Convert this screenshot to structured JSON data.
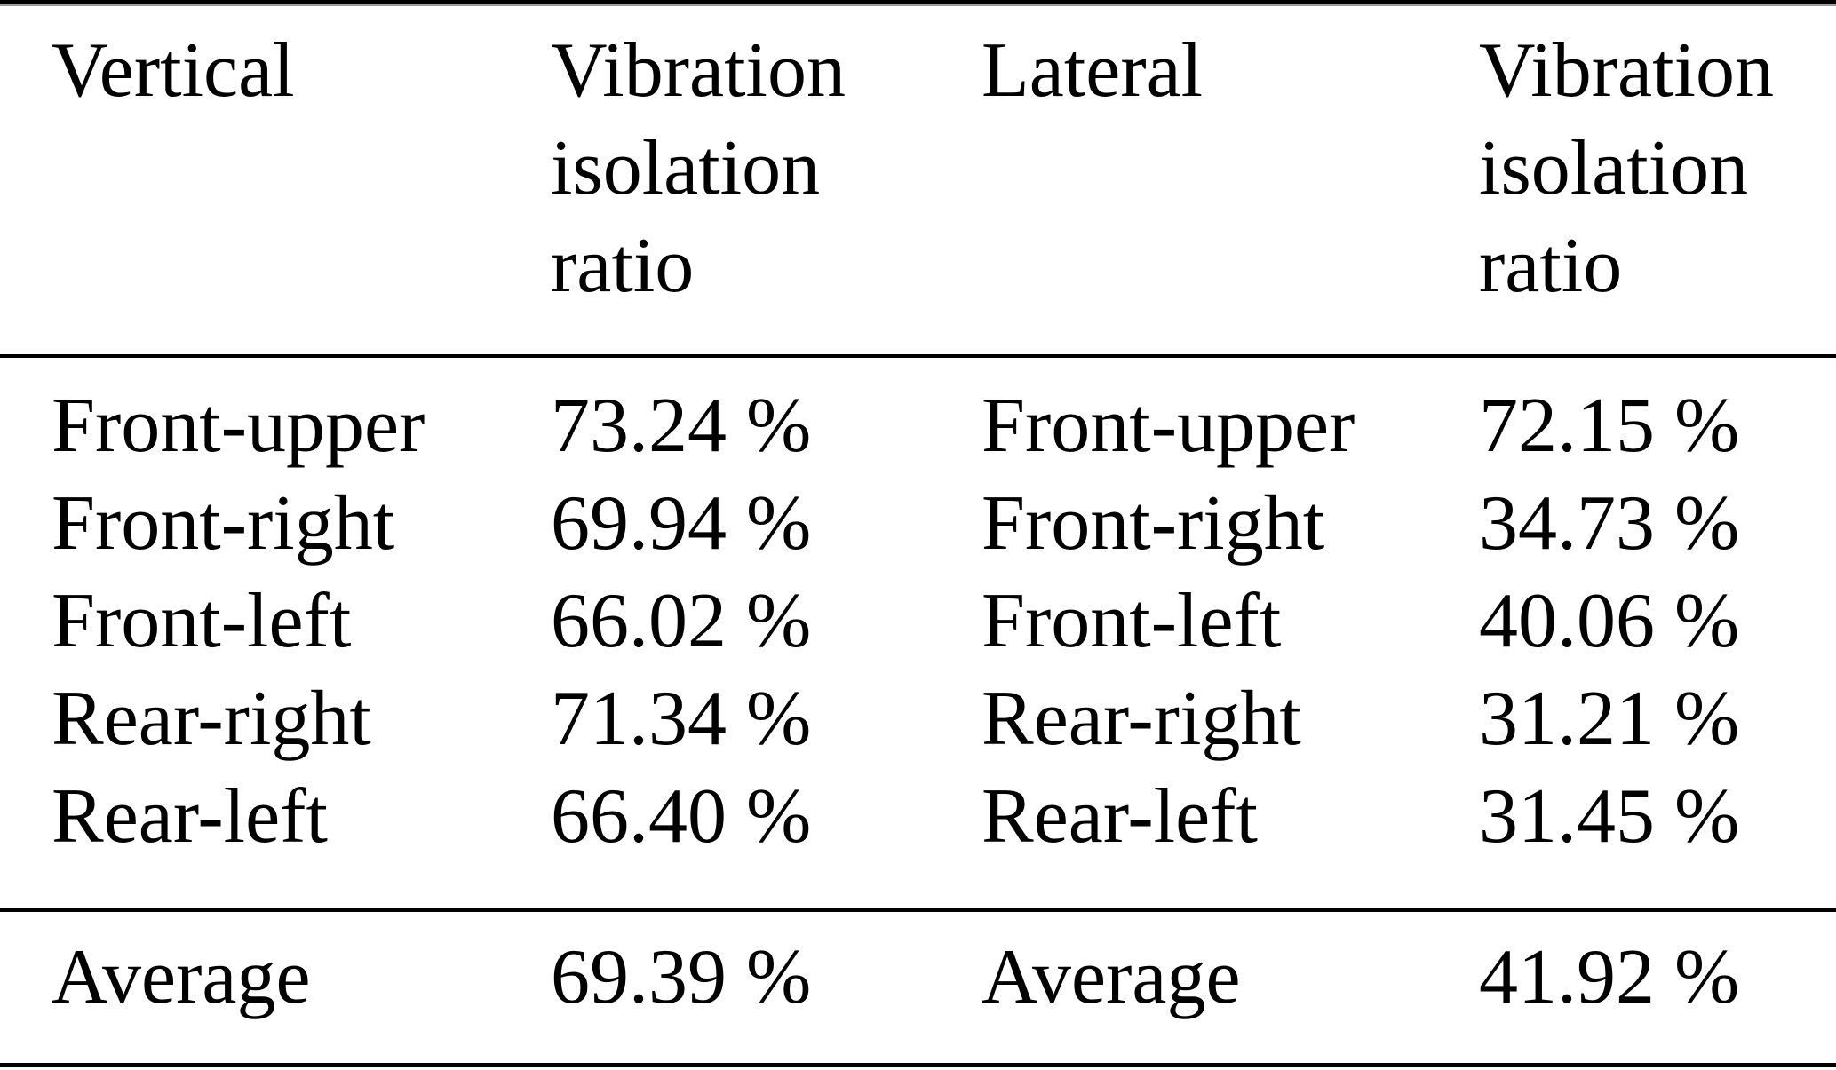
{
  "table": {
    "header": {
      "vertical_axis_label": "Vertical",
      "vertical_ratio_label": "Vibration isolation ratio",
      "lateral_axis_label": "Lateral",
      "lateral_ratio_label": "Vibration isolation ratio"
    },
    "rows": [
      {
        "vertical_position": "Front-upper",
        "vertical_ratio": "73.24 %",
        "lateral_position": "Front-upper",
        "lateral_ratio": "72.15 %"
      },
      {
        "vertical_position": "Front-right",
        "vertical_ratio": "69.94 %",
        "lateral_position": "Front-right",
        "lateral_ratio": "34.73 %"
      },
      {
        "vertical_position": "Front-left",
        "vertical_ratio": "66.02 %",
        "lateral_position": "Front-left",
        "lateral_ratio": "40.06 %"
      },
      {
        "vertical_position": "Rear-right",
        "vertical_ratio": "71.34 %",
        "lateral_position": "Rear-right",
        "lateral_ratio": "31.21 %"
      },
      {
        "vertical_position": "Rear-left",
        "vertical_ratio": "66.40 %",
        "lateral_position": "Rear-left",
        "lateral_ratio": "31.45 %"
      }
    ],
    "average_row": {
      "vertical_position": "Average",
      "vertical_ratio": "69.39 %",
      "lateral_position": "Average",
      "lateral_ratio": "41.92 %"
    }
  },
  "colors": {
    "background": "#ffffff",
    "text": "#000000",
    "rule": "#000000",
    "top_rule_thin": "#9a9a9a"
  }
}
